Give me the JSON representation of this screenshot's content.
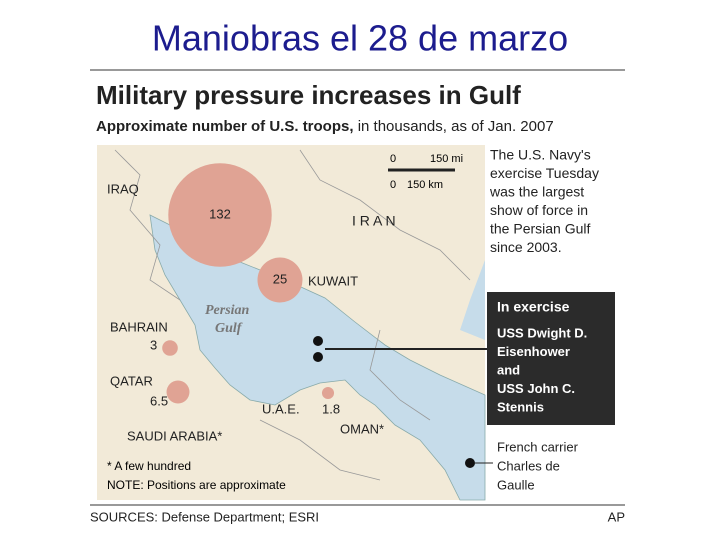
{
  "slide_title": "Maniobras el 28 de marzo",
  "graphic": {
    "title": "Military pressure increases in Gulf",
    "subtitle_bold": "Approximate number of U.S. troops,",
    "subtitle_rest": "in thousands, as of Jan. 2007"
  },
  "scale": {
    "mi_zero": "0",
    "mi": "150 mi",
    "km_zero": "0",
    "km": "150 km"
  },
  "map_labels": {
    "iran": "I R A N",
    "persian": "Persian",
    "gulf": "Gulf",
    "oman": "OMAN*",
    "saudi": "SAUDI ARABIA*"
  },
  "troops": [
    {
      "name": "IRAQ",
      "value": 132
    },
    {
      "name": "KUWAIT",
      "value": 25
    },
    {
      "name": "BAHRAIN",
      "value": 3
    },
    {
      "name": "QATAR",
      "value": 6.5
    },
    {
      "name": "U.A.E.",
      "value": 1.8
    }
  ],
  "notes": [
    "* A few hundred",
    "NOTE: Positions are approximate"
  ],
  "sidebar_text": [
    "The U.S. Navy's",
    "exercise Tuesday",
    "was the largest",
    "show of force in",
    "the Persian Gulf",
    "since 2003."
  ],
  "exercise": {
    "heading": "In exercise",
    "lines": [
      "USS Dwight D.",
      "Eisenhower",
      "and",
      "USS John C.",
      "Stennis"
    ]
  },
  "french": [
    "French carrier",
    "Charles de",
    "Gaulle"
  ],
  "sources": "SOURCES: Defense Department; ESRI",
  "credit": "AP"
}
